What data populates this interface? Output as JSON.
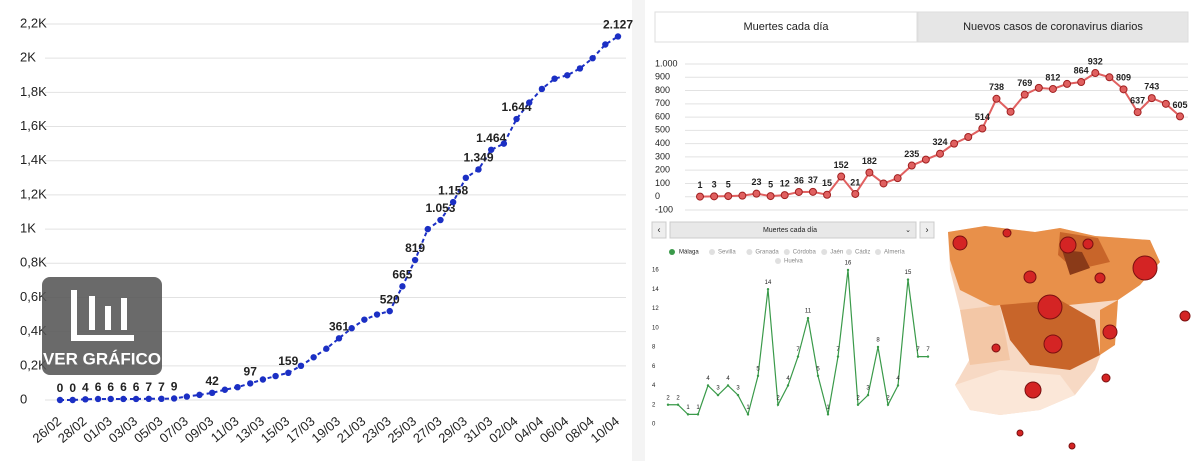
{
  "tabs": [
    "Muertes cada día",
    "Nuevos casos de coronavirus diarios"
  ],
  "overlay": {
    "label": "VER GRÁFICO"
  },
  "dropdown": {
    "label": "Muertes cada día"
  },
  "chart_data": [
    {
      "type": "line",
      "color": "#1b2fc4",
      "categories": [
        "26/02",
        null,
        "28/02",
        null,
        "01/03",
        null,
        "03/03",
        null,
        "05/03",
        null,
        "07/03",
        null,
        "09/03",
        null,
        "11/03",
        null,
        "13/03",
        null,
        "15/03",
        null,
        "17/03",
        null,
        "19/03",
        null,
        "21/03",
        null,
        "23/03",
        null,
        "25/03",
        null,
        "27/03",
        null,
        "29/03",
        null,
        "31/03",
        null,
        "02/04",
        null,
        "04/04",
        null,
        "06/04",
        null,
        "08/04",
        null,
        "10/04"
      ],
      "values": [
        0,
        0,
        4,
        6,
        6,
        6,
        6,
        7,
        7,
        9,
        20,
        30,
        42,
        60,
        75,
        97,
        120,
        140,
        159,
        200,
        250,
        300,
        361,
        420,
        470,
        500,
        520,
        665,
        819,
        1000,
        1053,
        1158,
        1300,
        1349,
        1464,
        1500,
        1644,
        1740,
        1820,
        1880,
        1900,
        1940,
        2000,
        2080,
        2127
      ],
      "value_labels": [
        "0",
        "0",
        "4",
        "6",
        "6",
        "6",
        "6",
        "7",
        "7",
        "9",
        null,
        null,
        "42",
        null,
        null,
        "97",
        null,
        null,
        "159",
        null,
        null,
        null,
        "361",
        null,
        null,
        null,
        "520",
        "665",
        "819",
        null,
        "1.053",
        "1.158",
        null,
        "1.349",
        "1.464",
        null,
        "1.644",
        null,
        null,
        null,
        null,
        null,
        null,
        null,
        "2.127"
      ],
      "ylim": [
        0,
        2200
      ],
      "yticks": [
        0,
        {
          "value": 200,
          "label": "0,2K"
        },
        {
          "value": 400,
          "label": "0,4K"
        },
        {
          "value": 600,
          "label": "0,6K"
        },
        {
          "value": 800,
          "label": "0,8K"
        },
        {
          "value": 1000,
          "label": "1K"
        },
        {
          "value": 1200,
          "label": "1,2K"
        },
        {
          "value": 1400,
          "label": "1,4K"
        },
        {
          "value": 1600,
          "label": "1,6K"
        },
        {
          "value": 1800,
          "label": "1,8K"
        },
        {
          "value": 2000,
          "label": "2K"
        },
        {
          "value": 2200,
          "label": "2,2K"
        }
      ],
      "grid": true
    },
    {
      "type": "line",
      "color": "#e06060",
      "values": [
        1,
        3,
        5,
        8,
        23,
        5,
        12,
        36,
        37,
        15,
        152,
        21,
        182,
        100,
        140,
        235,
        280,
        324,
        400,
        450,
        514,
        738,
        640,
        769,
        820,
        812,
        850,
        864,
        932,
        900,
        809,
        637,
        743,
        700,
        605
      ],
      "value_labels": [
        "1",
        "3",
        "5",
        null,
        "23",
        "5",
        "12",
        "36",
        "37",
        "15",
        "152",
        "21",
        "182",
        null,
        null,
        "235",
        null,
        "324",
        null,
        null,
        "514",
        "738",
        null,
        "769",
        null,
        "812",
        null,
        "864",
        "932",
        null,
        "809",
        "637",
        "743",
        null,
        "605"
      ],
      "ylim": [
        -100,
        1000
      ],
      "yticks": [
        -100,
        0,
        100,
        200,
        300,
        400,
        500,
        600,
        700,
        800,
        900,
        {
          "value": 1000,
          "label": "1.000"
        }
      ],
      "grid": true
    },
    {
      "type": "line",
      "series": [
        {
          "name": "Málaga",
          "color": "#3a9a4a",
          "values": [
            2,
            2,
            1,
            1,
            4,
            3,
            4,
            3,
            1,
            5,
            14,
            2,
            4,
            7,
            11,
            5,
            1,
            7,
            16,
            2,
            3,
            8,
            2,
            4,
            15,
            7,
            7
          ]
        }
      ],
      "inactive_series": [
        "Sevilla",
        "Granada",
        "Córdoba",
        "Jaén",
        "Cádiz",
        "Almería",
        "Huelva"
      ],
      "ylim": [
        0,
        16
      ],
      "yticks": [
        0,
        2,
        4,
        6,
        8,
        10,
        12,
        14,
        16
      ],
      "grid": false
    }
  ]
}
